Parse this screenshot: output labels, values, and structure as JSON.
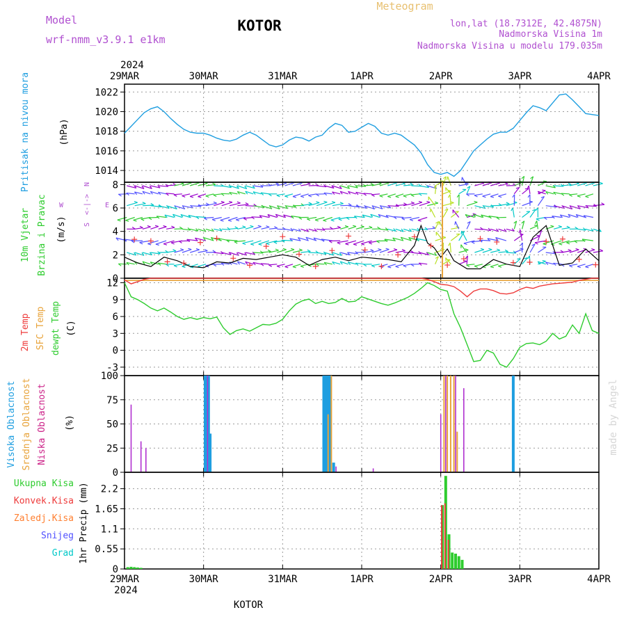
{
  "header": {
    "model_label": "Model",
    "model_name": "wrf-nmm_v3.9.1  e1km",
    "station": "KOTOR",
    "product": "Meteogram",
    "lonlat": "lon,lat (18.7312E, 42.4875N)",
    "elevation": "Nadmorska Visina 1m",
    "model_elevation": "Nadmorska Visina u modelu 179.035m"
  },
  "time_axis": {
    "year": "2024",
    "labels": [
      "29MAR",
      "30MAR",
      "31MAR",
      "1APR",
      "2APR",
      "3APR",
      "4APR"
    ]
  },
  "footer": {
    "station": "KOTOR"
  },
  "credit": "made by Angel",
  "colors": {
    "pressure": "#1e9ee0",
    "temp2m": "#ee3b3b",
    "sfc_temp": "#e8a33a",
    "dewpoint": "#2ecc2e",
    "visoka": "#1e9ee0",
    "srednja": "#e8a33a",
    "niska": "#b030d0",
    "wind_speed": "#000000",
    "wind_dir": "#ee3b3b",
    "barb_levels": [
      "#2ecc2e",
      "#00c8c8",
      "#5050ff",
      "#9900cc",
      "#b8e020"
    ]
  },
  "chart_data": [
    {
      "type": "line",
      "panel": "pressure",
      "ylabel_lines": [
        "Pritisak na nivou mora"
      ],
      "unit": "(hPa)",
      "ylim": [
        1012.8,
        1022.8
      ],
      "yticks": [
        1014,
        1016,
        1018,
        1020,
        1022
      ],
      "grid": true,
      "x_hours": [
        0,
        2,
        4,
        6,
        8,
        10,
        12,
        14,
        16,
        18,
        20,
        22,
        24,
        26,
        28,
        30,
        32,
        34,
        36,
        38,
        40,
        42,
        44,
        46,
        48,
        50,
        52,
        54,
        56,
        58,
        60,
        62,
        64,
        66,
        68,
        70,
        72,
        74,
        76,
        78,
        80,
        82,
        84,
        86,
        88,
        90,
        92,
        94,
        96,
        98,
        100,
        102,
        104,
        106,
        108,
        110,
        112,
        114,
        116,
        118,
        120,
        122,
        124,
        126,
        128,
        130,
        132,
        134,
        136,
        138,
        140,
        142,
        144
      ],
      "series": [
        {
          "values": [
            1017.8,
            1018.5,
            1019.2,
            1019.9,
            1020.3,
            1020.5,
            1020.0,
            1019.3,
            1018.7,
            1018.2,
            1017.9,
            1017.8,
            1017.8,
            1017.6,
            1017.3,
            1017.1,
            1017.0,
            1017.2,
            1017.6,
            1017.9,
            1017.6,
            1017.1,
            1016.6,
            1016.4,
            1016.6,
            1017.1,
            1017.4,
            1017.3,
            1017.0,
            1017.4,
            1017.6,
            1018.3,
            1018.8,
            1018.6,
            1017.9,
            1018.0,
            1018.4,
            1018.8,
            1018.5,
            1017.8,
            1017.6,
            1017.8,
            1017.6,
            1017.1,
            1016.6,
            1015.8,
            1014.6,
            1013.8,
            1013.6,
            1013.8,
            1013.4,
            1014.0,
            1015.0,
            1016.0,
            1016.6,
            1017.2,
            1017.7,
            1017.9,
            1017.9,
            1018.3,
            1019.1,
            1019.9,
            1020.6,
            1020.4,
            1020.1,
            1020.9,
            1021.7,
            1021.8,
            1021.2,
            1020.5,
            1019.8,
            1019.7,
            1019.6
          ]
        }
      ]
    },
    {
      "type": "line",
      "panel": "wind",
      "ylabel_lines": [
        "10m Vjetar",
        "Brzina i Pravac"
      ],
      "unit": "(m/s)",
      "compass": {
        "n": "N",
        "s": "S",
        "w": "W",
        "e": "E"
      },
      "ylim": [
        0,
        8.2
      ],
      "yticks": [
        0,
        2,
        4,
        6,
        8
      ],
      "grid": true,
      "x_hours": [
        0,
        4,
        8,
        12,
        16,
        20,
        24,
        28,
        32,
        36,
        40,
        44,
        48,
        52,
        56,
        60,
        64,
        68,
        72,
        76,
        80,
        84,
        88,
        90,
        92,
        94,
        96,
        98,
        100,
        104,
        108,
        112,
        116,
        120,
        124,
        128,
        132,
        136,
        140,
        144
      ],
      "series": [
        {
          "name": "speed",
          "values": [
            1.8,
            1.3,
            1.0,
            1.8,
            1.5,
            1.0,
            0.9,
            1.4,
            1.3,
            1.7,
            1.6,
            1.8,
            2.0,
            1.8,
            1.1,
            1.6,
            1.8,
            1.5,
            1.8,
            1.7,
            1.6,
            1.4,
            2.8,
            4.5,
            3.0,
            2.6,
            1.8,
            2.5,
            1.5,
            0.8,
            0.8,
            1.6,
            1.2,
            1.0,
            3.5,
            4.5,
            1.1,
            1.3,
            2.5,
            1.5
          ]
        }
      ]
    },
    {
      "type": "line",
      "panel": "temperature",
      "ylabel_lines": [
        "2m Temp",
        "SFC Temp",
        "dewpt Temp"
      ],
      "unit": "(C)",
      "ylim": [
        -4.5,
        12.8
      ],
      "yticks": [
        -3,
        0,
        3,
        6,
        9,
        12
      ],
      "grid": true,
      "x_hours": [
        0,
        2,
        4,
        6,
        8,
        10,
        12,
        14,
        16,
        18,
        20,
        22,
        24,
        26,
        28,
        30,
        32,
        34,
        36,
        38,
        40,
        42,
        44,
        46,
        48,
        50,
        52,
        54,
        56,
        58,
        60,
        62,
        64,
        66,
        68,
        70,
        72,
        74,
        76,
        78,
        80,
        82,
        84,
        86,
        88,
        90,
        92,
        94,
        96,
        98,
        100,
        102,
        104,
        106,
        108,
        110,
        112,
        114,
        116,
        118,
        120,
        122,
        124,
        126,
        128,
        130,
        132,
        134,
        136,
        138,
        140,
        142,
        144
      ],
      "series": [
        {
          "name": "2m Temp",
          "values": [
            12.5,
            11.8,
            12.2,
            12.6,
            12.8,
            12.8,
            12.8,
            12.8,
            12.8,
            12.8,
            12.8,
            12.8,
            12.8,
            12.8,
            12.8,
            12.8,
            12.8,
            12.8,
            12.8,
            12.8,
            12.8,
            12.8,
            12.8,
            12.8,
            12.8,
            12.8,
            12.8,
            12.8,
            12.8,
            12.8,
            12.8,
            12.8,
            12.8,
            12.8,
            12.8,
            12.8,
            12.8,
            12.8,
            12.8,
            12.8,
            12.8,
            12.8,
            12.8,
            12.8,
            12.8,
            12.8,
            12.6,
            12.2,
            11.7,
            11.6,
            11.3,
            10.5,
            9.5,
            10.5,
            10.9,
            10.9,
            10.6,
            10.1,
            10.0,
            10.2,
            10.8,
            11.2,
            11.0,
            11.4,
            11.6,
            11.8,
            11.9,
            12.0,
            12.1,
            12.4,
            12.6,
            12.8,
            12.8
          ]
        },
        {
          "name": "SFC Temp",
          "values": [
            12.4,
            12.4,
            12.4,
            12.4,
            12.4,
            12.4,
            12.4,
            12.4,
            12.4,
            12.4,
            12.4,
            12.4,
            12.4,
            12.4,
            12.4,
            12.4,
            12.4,
            12.4,
            12.4,
            12.4,
            12.4,
            12.4,
            12.4,
            12.4,
            12.4,
            12.4,
            12.4,
            12.4,
            12.4,
            12.4,
            12.4,
            12.4,
            12.4,
            12.4,
            12.4,
            12.4,
            12.4,
            12.4,
            12.4,
            12.4,
            12.4,
            12.4,
            12.4,
            12.4,
            12.4,
            12.4,
            12.4,
            12.4,
            12.4,
            12.4,
            12.4,
            12.4,
            12.4,
            12.4,
            12.4,
            12.4,
            12.4,
            12.4,
            12.4,
            12.4,
            12.4,
            12.4,
            12.4,
            12.4,
            12.4,
            12.4,
            12.4,
            12.4,
            12.4,
            12.4,
            12.4,
            12.4,
            12.4
          ]
        },
        {
          "name": "dewpt Temp",
          "values": [
            12.0,
            9.5,
            9.0,
            8.3,
            7.5,
            7.0,
            7.5,
            6.8,
            6.0,
            5.5,
            5.8,
            5.5,
            5.8,
            5.6,
            5.9,
            4.0,
            2.8,
            3.5,
            3.8,
            3.4,
            4.0,
            4.6,
            4.5,
            4.8,
            5.5,
            7.0,
            8.2,
            8.8,
            9.1,
            8.3,
            8.7,
            8.3,
            8.5,
            9.2,
            8.6,
            8.7,
            9.5,
            9.1,
            8.7,
            8.3,
            8.0,
            8.4,
            8.9,
            9.4,
            10.1,
            11.0,
            12.0,
            11.5,
            10.8,
            10.5,
            6.5,
            4.0,
            1.0,
            -2.0,
            -1.8,
            0.0,
            -0.5,
            -2.5,
            -3.0,
            -1.5,
            0.5,
            1.2,
            1.3,
            1.0,
            1.6,
            3.0,
            2.0,
            2.5,
            4.5,
            3.0,
            6.5,
            3.5,
            3.0
          ]
        }
      ]
    },
    {
      "type": "bar",
      "panel": "clouds",
      "ylabel_lines": [
        "Visoka Oblacnost",
        "Srednja Oblacnost",
        "Niska Oblacnost"
      ],
      "unit": "(%)",
      "ylim": [
        0,
        100
      ],
      "yticks": [
        0,
        25,
        50,
        75,
        100
      ],
      "grid": true,
      "series": [
        {
          "name": "Visoka Oblacnost",
          "bars": [
            [
              24.5,
              100
            ],
            [
              25,
              100
            ],
            [
              25.5,
              100
            ],
            [
              26,
              40
            ],
            [
              60.5,
              100
            ],
            [
              61,
              100
            ],
            [
              61.5,
              100
            ],
            [
              62,
              100
            ],
            [
              62.5,
              100
            ],
            [
              63.5,
              10
            ],
            [
              118,
              100
            ]
          ]
        },
        {
          "name": "Srednja Oblacnost",
          "bars": [
            [
              61.8,
              60
            ],
            [
              62.8,
              100
            ],
            [
              97,
              100
            ],
            [
              98,
              100
            ],
            [
              99,
              100
            ],
            [
              100,
              100
            ],
            [
              101,
              42
            ]
          ]
        },
        {
          "name": "Niska Oblacnost",
          "bars": [
            [
              2,
              70
            ],
            [
              5,
              32
            ],
            [
              6.5,
              25
            ],
            [
              25.2,
              100
            ],
            [
              64.2,
              6
            ],
            [
              75.5,
              4
            ],
            [
              96,
              60
            ],
            [
              97.5,
              100
            ],
            [
              100.5,
              100
            ],
            [
              103,
              87
            ]
          ]
        }
      ]
    },
    {
      "type": "bar",
      "panel": "precipitation",
      "ylabel_lines": [
        "1hr Precip (mm)"
      ],
      "legend": [
        "Ukupna Kisa",
        "Konvek.Kisa",
        "Zaledj.Kisa",
        "Snijeg",
        "Grad"
      ],
      "ylim": [
        0,
        2.65
      ],
      "yticks": [
        0,
        0.55,
        1.1,
        1.65,
        2.2
      ],
      "ytick_labels": [
        "0",
        "0.55",
        "1.1",
        "1.65",
        "2.2"
      ],
      "grid": true,
      "series": [
        {
          "name": "Ukupna Kisa",
          "bars": [
            [
              1,
              0.05
            ],
            [
              2,
              0.06
            ],
            [
              3,
              0.05
            ],
            [
              4,
              0.04
            ],
            [
              5,
              0.03
            ],
            [
              96.5,
              1.75
            ],
            [
              97.5,
              2.55
            ],
            [
              98.5,
              0.95
            ],
            [
              99.5,
              0.45
            ],
            [
              100.5,
              0.42
            ],
            [
              101.5,
              0.35
            ],
            [
              102.5,
              0.25
            ]
          ]
        },
        {
          "name": "Konvek.Kisa",
          "bars": [
            [
              96.3,
              1.75
            ],
            [
              97.3,
              1.8
            ],
            [
              98.3,
              0.8
            ]
          ]
        }
      ]
    }
  ]
}
